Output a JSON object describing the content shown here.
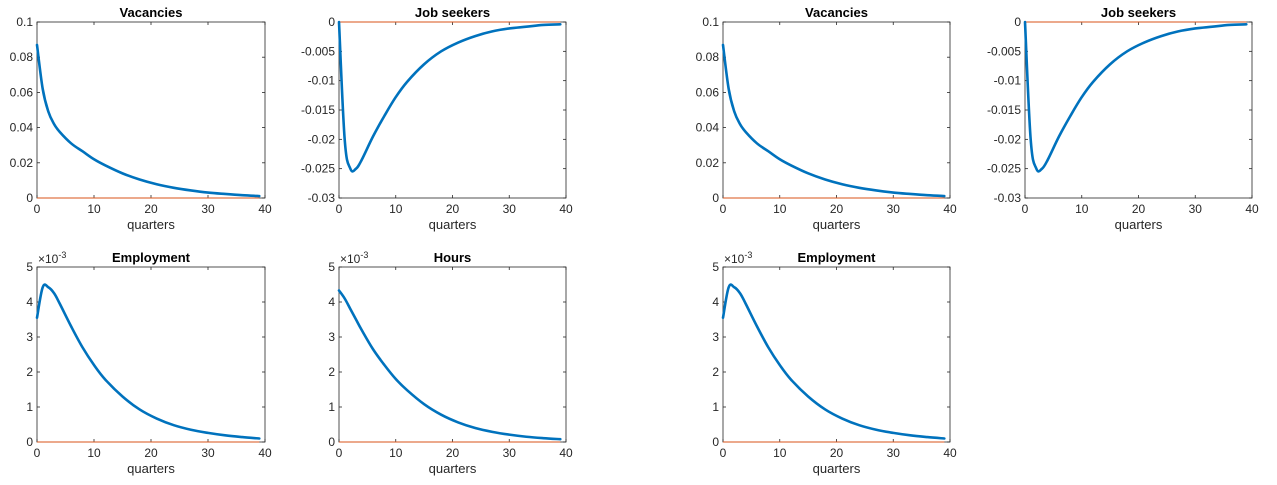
{
  "colors": {
    "series": "#0072BD",
    "zero_line": "#D95319",
    "axes": "#262626"
  },
  "chart_data": [
    {
      "type": "line",
      "title": "Vacancies",
      "xlabel": "quarters",
      "xlim": [
        0,
        40
      ],
      "ylim": [
        0,
        0.1
      ],
      "xticks": [
        0,
        10,
        20,
        30,
        40
      ],
      "xtick_labels": [
        "0",
        "10",
        "20",
        "30",
        "40"
      ],
      "yticks": [
        0,
        0.02,
        0.04,
        0.06,
        0.08,
        0.1
      ],
      "ytick_labels": [
        "0",
        "0.02",
        "0.04",
        "0.06",
        "0.08",
        "0.1"
      ],
      "zero_line": 0,
      "x": [
        0,
        1,
        2,
        3,
        4,
        6,
        8,
        10,
        12,
        15,
        18,
        21,
        24,
        27,
        30,
        33,
        36,
        39
      ],
      "y": [
        0.087,
        0.062,
        0.049,
        0.042,
        0.0375,
        0.031,
        0.0265,
        0.022,
        0.0185,
        0.014,
        0.0105,
        0.0078,
        0.0058,
        0.0043,
        0.0031,
        0.0023,
        0.0016,
        0.0011
      ]
    },
    {
      "type": "line",
      "title": "Job seekers",
      "xlabel": "quarters",
      "xlim": [
        0,
        40
      ],
      "ylim": [
        -0.03,
        0
      ],
      "xticks": [
        0,
        10,
        20,
        30,
        40
      ],
      "xtick_labels": [
        "0",
        "10",
        "20",
        "30",
        "40"
      ],
      "yticks": [
        -0.03,
        -0.025,
        -0.02,
        -0.015,
        -0.01,
        -0.005,
        0
      ],
      "ytick_labels": [
        "-0.03",
        "-0.025",
        "-0.02",
        "-0.015",
        "-0.01",
        "-0.005",
        "0"
      ],
      "zero_line": 0,
      "x": [
        0,
        1,
        2,
        3,
        4,
        6,
        8,
        10,
        12,
        15,
        18,
        21,
        24,
        27,
        30,
        33,
        36,
        39
      ],
      "y": [
        0,
        -0.02,
        -0.025,
        -0.025,
        -0.0235,
        -0.0195,
        -0.016,
        -0.0128,
        -0.0102,
        -0.0072,
        -0.005,
        -0.0035,
        -0.0024,
        -0.0016,
        -0.0011,
        -0.0008,
        -0.0005,
        -0.0004
      ]
    },
    {
      "type": "line",
      "title": "Vacancies",
      "xlabel": "quarters",
      "xlim": [
        0,
        40
      ],
      "ylim": [
        0,
        0.1
      ],
      "xticks": [
        0,
        10,
        20,
        30,
        40
      ],
      "xtick_labels": [
        "0",
        "10",
        "20",
        "30",
        "40"
      ],
      "yticks": [
        0,
        0.02,
        0.04,
        0.06,
        0.08,
        0.1
      ],
      "ytick_labels": [
        "0",
        "0.02",
        "0.04",
        "0.06",
        "0.08",
        "0.1"
      ],
      "zero_line": 0,
      "x": [
        0,
        1,
        2,
        3,
        4,
        6,
        8,
        10,
        12,
        15,
        18,
        21,
        24,
        27,
        30,
        33,
        36,
        39
      ],
      "y": [
        0.087,
        0.062,
        0.049,
        0.042,
        0.0375,
        0.031,
        0.0265,
        0.022,
        0.0185,
        0.014,
        0.0105,
        0.0078,
        0.0058,
        0.0043,
        0.0031,
        0.0023,
        0.0016,
        0.0011
      ]
    },
    {
      "type": "line",
      "title": "Job seekers",
      "xlabel": "quarters",
      "xlim": [
        0,
        40
      ],
      "ylim": [
        -0.03,
        0
      ],
      "xticks": [
        0,
        10,
        20,
        30,
        40
      ],
      "xtick_labels": [
        "0",
        "10",
        "20",
        "30",
        "40"
      ],
      "yticks": [
        -0.03,
        -0.025,
        -0.02,
        -0.015,
        -0.01,
        -0.005,
        0
      ],
      "ytick_labels": [
        "-0.03",
        "-0.025",
        "-0.02",
        "-0.015",
        "-0.01",
        "-0.005",
        "0"
      ],
      "zero_line": 0,
      "x": [
        0,
        1,
        2,
        3,
        4,
        6,
        8,
        10,
        12,
        15,
        18,
        21,
        24,
        27,
        30,
        33,
        36,
        39
      ],
      "y": [
        0,
        -0.02,
        -0.025,
        -0.025,
        -0.0235,
        -0.0195,
        -0.016,
        -0.0128,
        -0.0102,
        -0.0072,
        -0.005,
        -0.0035,
        -0.0024,
        -0.0016,
        -0.0011,
        -0.0008,
        -0.0005,
        -0.0004
      ]
    },
    {
      "type": "line",
      "title": "Employment",
      "xlabel": "quarters",
      "xlim": [
        0,
        40
      ],
      "ylim": [
        0,
        5
      ],
      "xticks": [
        0,
        10,
        20,
        30,
        40
      ],
      "xtick_labels": [
        "0",
        "10",
        "20",
        "30",
        "40"
      ],
      "yticks": [
        0,
        1,
        2,
        3,
        4,
        5
      ],
      "ytick_labels": [
        "0",
        "1",
        "2",
        "3",
        "4",
        "5"
      ],
      "y_multiplier": {
        "base": "×10",
        "exponent": "-3"
      },
      "zero_line": 0,
      "x": [
        0,
        1,
        2,
        3,
        4,
        6,
        8,
        10,
        12,
        15,
        18,
        21,
        24,
        27,
        30,
        33,
        36,
        39
      ],
      "y": [
        3.55,
        4.42,
        4.42,
        4.25,
        3.95,
        3.3,
        2.7,
        2.2,
        1.78,
        1.3,
        0.93,
        0.67,
        0.48,
        0.35,
        0.26,
        0.19,
        0.14,
        0.1
      ]
    },
    {
      "type": "line",
      "title": "Hours",
      "xlabel": "quarters",
      "xlim": [
        0,
        40
      ],
      "ylim": [
        0,
        5
      ],
      "xticks": [
        0,
        10,
        20,
        30,
        40
      ],
      "xtick_labels": [
        "0",
        "10",
        "20",
        "30",
        "40"
      ],
      "yticks": [
        0,
        1,
        2,
        3,
        4,
        5
      ],
      "ytick_labels": [
        "0",
        "1",
        "2",
        "3",
        "4",
        "5"
      ],
      "y_multiplier": {
        "base": "×10",
        "exponent": "-3"
      },
      "zero_line": 0,
      "x": [
        0,
        1,
        2,
        3,
        4,
        6,
        8,
        10,
        12,
        15,
        18,
        21,
        24,
        27,
        30,
        33,
        36,
        39
      ],
      "y": [
        4.33,
        4.1,
        3.8,
        3.5,
        3.2,
        2.65,
        2.2,
        1.8,
        1.48,
        1.08,
        0.78,
        0.56,
        0.4,
        0.29,
        0.21,
        0.15,
        0.11,
        0.08
      ]
    },
    {
      "type": "line",
      "title": "Employment",
      "xlabel": "quarters",
      "xlim": [
        0,
        40
      ],
      "ylim": [
        0,
        5
      ],
      "xticks": [
        0,
        10,
        20,
        30,
        40
      ],
      "xtick_labels": [
        "0",
        "10",
        "20",
        "30",
        "40"
      ],
      "yticks": [
        0,
        1,
        2,
        3,
        4,
        5
      ],
      "ytick_labels": [
        "0",
        "1",
        "2",
        "3",
        "4",
        "5"
      ],
      "y_multiplier": {
        "base": "×10",
        "exponent": "-3"
      },
      "zero_line": 0,
      "x": [
        0,
        1,
        2,
        3,
        4,
        6,
        8,
        10,
        12,
        15,
        18,
        21,
        24,
        27,
        30,
        33,
        36,
        39
      ],
      "y": [
        3.55,
        4.42,
        4.42,
        4.25,
        3.95,
        3.3,
        2.7,
        2.2,
        1.78,
        1.3,
        0.93,
        0.67,
        0.48,
        0.35,
        0.26,
        0.19,
        0.14,
        0.1
      ]
    }
  ]
}
